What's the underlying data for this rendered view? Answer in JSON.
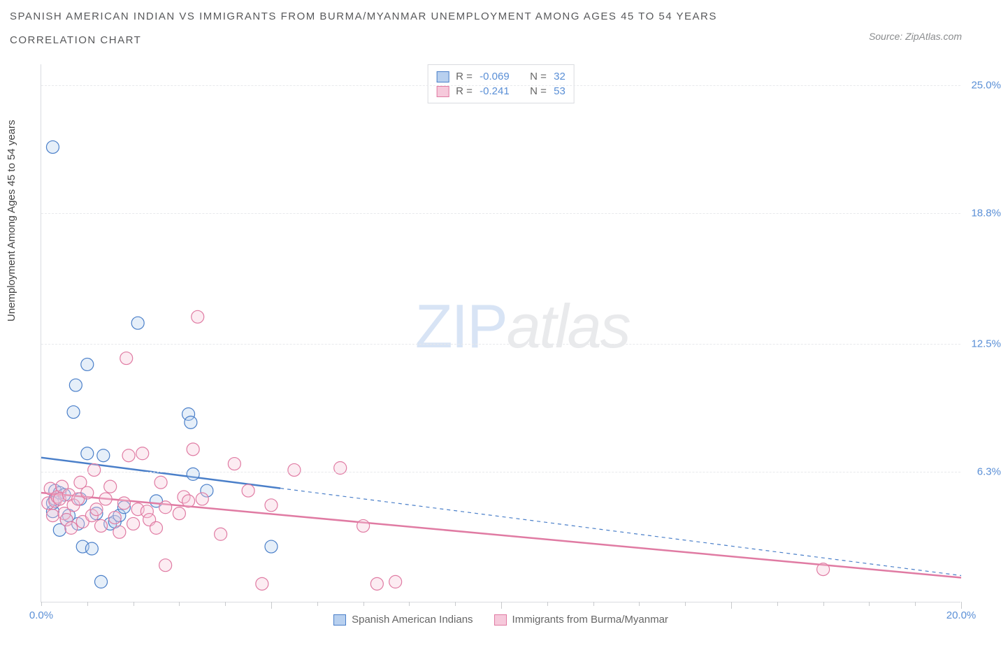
{
  "title_line1": "SPANISH AMERICAN INDIAN VS IMMIGRANTS FROM BURMA/MYANMAR UNEMPLOYMENT AMONG AGES 45 TO 54 YEARS",
  "title_line2": "CORRELATION CHART",
  "source_label": "Source: ZipAtlas.com",
  "ylabel": "Unemployment Among Ages 45 to 54 years",
  "watermark": {
    "zip": "ZIP",
    "atlas": "atlas"
  },
  "chart": {
    "type": "scatter",
    "xlim": [
      0,
      20
    ],
    "ylim": [
      0,
      26
    ],
    "grid_color": "#e8e9ec",
    "axis_color": "#d9dbe0",
    "background_color": "#ffffff",
    "yticks": [
      {
        "v": 25.0,
        "label": "25.0%"
      },
      {
        "v": 18.8,
        "label": "18.8%"
      },
      {
        "v": 12.5,
        "label": "12.5%"
      },
      {
        "v": 6.3,
        "label": "6.3%"
      }
    ],
    "xticks_minor": [
      0,
      1,
      2,
      3,
      4,
      5,
      6,
      7,
      8,
      9,
      10,
      11,
      12,
      13,
      14,
      15,
      16,
      17,
      18,
      19,
      20
    ],
    "xticks_major": [
      5,
      10,
      15,
      20
    ],
    "xspan_labels": [
      {
        "v": 0,
        "label": "0.0%"
      },
      {
        "v": 20,
        "label": "20.0%"
      }
    ],
    "marker_radius": 9,
    "marker_stroke_width": 1.2,
    "fill_opacity": 0.35,
    "series": [
      {
        "id": "series-a",
        "name": "Spanish American Indians",
        "color_stroke": "#4a7fc9",
        "color_fill": "#b8d0ef",
        "r_label": "R =",
        "r_value": "-0.069",
        "n_label": "N =",
        "n_value": "32",
        "regression": {
          "solid_to_x": 5.2,
          "y_at_0": 7.0,
          "y_at_end": 1.3,
          "line_width": 2.5
        },
        "points": [
          [
            0.25,
            22.0
          ],
          [
            0.25,
            4.4
          ],
          [
            0.25,
            4.8
          ],
          [
            0.3,
            5.0
          ],
          [
            0.3,
            5.4
          ],
          [
            0.4,
            3.5
          ],
          [
            0.4,
            5.3
          ],
          [
            0.5,
            5.2
          ],
          [
            0.55,
            4.0
          ],
          [
            0.6,
            4.2
          ],
          [
            0.7,
            9.2
          ],
          [
            0.75,
            10.5
          ],
          [
            0.8,
            3.8
          ],
          [
            0.85,
            5.0
          ],
          [
            0.9,
            2.7
          ],
          [
            1.0,
            7.2
          ],
          [
            1.0,
            11.5
          ],
          [
            1.1,
            2.6
          ],
          [
            1.2,
            4.3
          ],
          [
            1.3,
            1.0
          ],
          [
            1.35,
            7.1
          ],
          [
            1.5,
            3.8
          ],
          [
            1.6,
            3.9
          ],
          [
            1.7,
            4.2
          ],
          [
            1.8,
            4.6
          ],
          [
            2.1,
            13.5
          ],
          [
            2.5,
            4.9
          ],
          [
            3.2,
            9.1
          ],
          [
            3.25,
            8.7
          ],
          [
            3.3,
            6.2
          ],
          [
            3.6,
            5.4
          ],
          [
            5.0,
            2.7
          ]
        ]
      },
      {
        "id": "series-b",
        "name": "Immigrants from Burma/Myanmar",
        "color_stroke": "#e07ba3",
        "color_fill": "#f6c9db",
        "r_label": "R =",
        "r_value": "-0.241",
        "n_label": "N =",
        "n_value": "53",
        "regression": {
          "solid_to_x": 20,
          "y_at_0": 5.3,
          "y_at_end": 1.2,
          "line_width": 2.5
        },
        "points": [
          [
            0.15,
            4.8
          ],
          [
            0.2,
            5.5
          ],
          [
            0.25,
            4.2
          ],
          [
            0.3,
            4.9
          ],
          [
            0.35,
            5.1
          ],
          [
            0.4,
            5.0
          ],
          [
            0.45,
            5.6
          ],
          [
            0.5,
            4.3
          ],
          [
            0.55,
            4.0
          ],
          [
            0.6,
            5.2
          ],
          [
            0.65,
            3.6
          ],
          [
            0.7,
            4.7
          ],
          [
            0.8,
            5.0
          ],
          [
            0.85,
            5.8
          ],
          [
            0.9,
            3.9
          ],
          [
            1.0,
            5.3
          ],
          [
            1.1,
            4.2
          ],
          [
            1.15,
            6.4
          ],
          [
            1.2,
            4.5
          ],
          [
            1.3,
            3.7
          ],
          [
            1.4,
            5.0
          ],
          [
            1.5,
            5.6
          ],
          [
            1.6,
            4.1
          ],
          [
            1.7,
            3.4
          ],
          [
            1.8,
            4.8
          ],
          [
            1.85,
            11.8
          ],
          [
            1.9,
            7.1
          ],
          [
            2.0,
            3.8
          ],
          [
            2.1,
            4.5
          ],
          [
            2.2,
            7.2
          ],
          [
            2.3,
            4.4
          ],
          [
            2.35,
            4.0
          ],
          [
            2.5,
            3.6
          ],
          [
            2.6,
            5.8
          ],
          [
            2.7,
            4.6
          ],
          [
            2.7,
            1.8
          ],
          [
            3.0,
            4.3
          ],
          [
            3.1,
            5.1
          ],
          [
            3.2,
            4.9
          ],
          [
            3.3,
            7.4
          ],
          [
            3.4,
            13.8
          ],
          [
            3.5,
            5.0
          ],
          [
            3.9,
            3.3
          ],
          [
            4.2,
            6.7
          ],
          [
            4.5,
            5.4
          ],
          [
            4.8,
            0.9
          ],
          [
            5.0,
            4.7
          ],
          [
            5.5,
            6.4
          ],
          [
            6.5,
            6.5
          ],
          [
            7.0,
            3.7
          ],
          [
            7.3,
            0.9
          ],
          [
            7.7,
            1.0
          ],
          [
            17.0,
            1.6
          ]
        ]
      }
    ]
  },
  "legend_bottom": [
    {
      "name": "Spanish American Indians",
      "stroke": "#4a7fc9",
      "fill": "#b8d0ef"
    },
    {
      "name": "Immigrants from Burma/Myanmar",
      "stroke": "#e07ba3",
      "fill": "#f6c9db"
    }
  ]
}
